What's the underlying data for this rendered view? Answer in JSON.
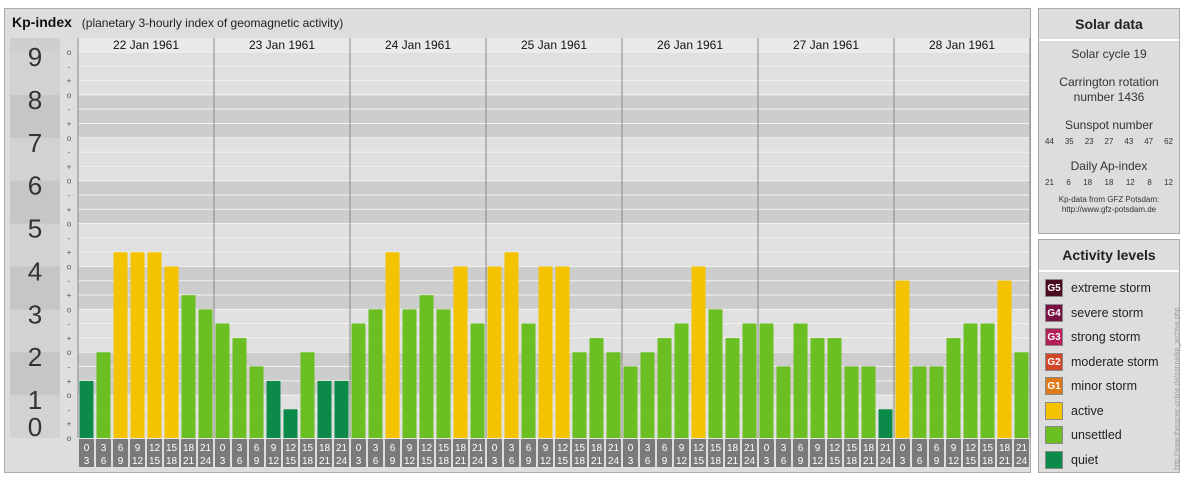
{
  "title": "Kp-index",
  "subtitle": "(planetary 3-hourly index of geomagnetic activity)",
  "colors": {
    "quiet": "#0b8a4a",
    "unsettled": "#6cbf22",
    "active": "#f5c200",
    "G1": "#e07a18",
    "G2": "#d2462a",
    "G3": "#b51f5a",
    "G4": "#7a1145",
    "G5": "#4a0a20"
  },
  "chart_data": {
    "type": "bar",
    "title": "Kp-index",
    "subtitle": "(planetary 3-hourly index of geomagnetic activity)",
    "ylim": [
      0,
      9
    ],
    "yticks": [
      "0",
      "1",
      "2",
      "3",
      "4",
      "5",
      "6",
      "7",
      "8",
      "9"
    ],
    "minor_ticks": [
      "-",
      "o",
      "+"
    ],
    "days": [
      "22 Jan 1961",
      "23 Jan 1961",
      "24 Jan 1961",
      "25 Jan 1961",
      "26 Jan 1961",
      "27 Jan 1961",
      "28 Jan 1961"
    ],
    "interval_start": [
      "0",
      "3",
      "6",
      "9",
      "12",
      "15",
      "18",
      "21"
    ],
    "interval_end": [
      "3",
      "6",
      "9",
      "12",
      "15",
      "18",
      "21",
      "24"
    ],
    "values": [
      1.33,
      2.0,
      4.33,
      4.33,
      4.33,
      4.0,
      3.33,
      3.0,
      2.67,
      2.33,
      1.67,
      1.33,
      0.67,
      2.0,
      1.33,
      1.33,
      2.67,
      3.0,
      4.33,
      3.0,
      3.33,
      3.0,
      4.0,
      2.67,
      4.0,
      4.33,
      2.67,
      4.0,
      4.0,
      2.0,
      2.33,
      2.0,
      1.67,
      2.0,
      2.33,
      2.67,
      4.0,
      3.0,
      2.33,
      2.67,
      2.67,
      1.67,
      2.67,
      2.33,
      2.33,
      1.67,
      1.67,
      0.67,
      3.67,
      1.67,
      1.67,
      2.33,
      2.67,
      2.67,
      3.67,
      2.0
    ]
  },
  "solar": {
    "title": "Solar data",
    "cycle": "Solar cycle 19",
    "carrington": "Carrington rotation number 1436",
    "sunspot_label": "Sunspot number",
    "sunspot_numbers": [
      "44",
      "35",
      "23",
      "27",
      "43",
      "47",
      "62"
    ],
    "ap_label": "Daily Ap-index",
    "ap_numbers": [
      "21",
      "6",
      "18",
      "18",
      "12",
      "8",
      "12"
    ],
    "credit_line1": "Kp-data from GFZ Potsdam:",
    "credit_line2": "http://www.gfz-potsdam.de"
  },
  "activity": {
    "title": "Activity levels",
    "items": [
      {
        "badge": "G5",
        "label": "extreme storm",
        "color": "#4a0a20"
      },
      {
        "badge": "G4",
        "label": "severe storm",
        "color": "#7a1145"
      },
      {
        "badge": "G3",
        "label": "strong storm",
        "color": "#b51f5a"
      },
      {
        "badge": "G2",
        "label": "moderate storm",
        "color": "#d2462a"
      },
      {
        "badge": "G1",
        "label": "minor storm",
        "color": "#e07a18"
      },
      {
        "badge": "",
        "label": "active",
        "color": "#f5c200"
      },
      {
        "badge": "",
        "label": "unsettled",
        "color": "#6cbf22"
      },
      {
        "badge": "",
        "label": "quiet",
        "color": "#0b8a4a"
      }
    ]
  },
  "side_credit": "http://www.theusner-online.de/sonne/kp_archive.php"
}
